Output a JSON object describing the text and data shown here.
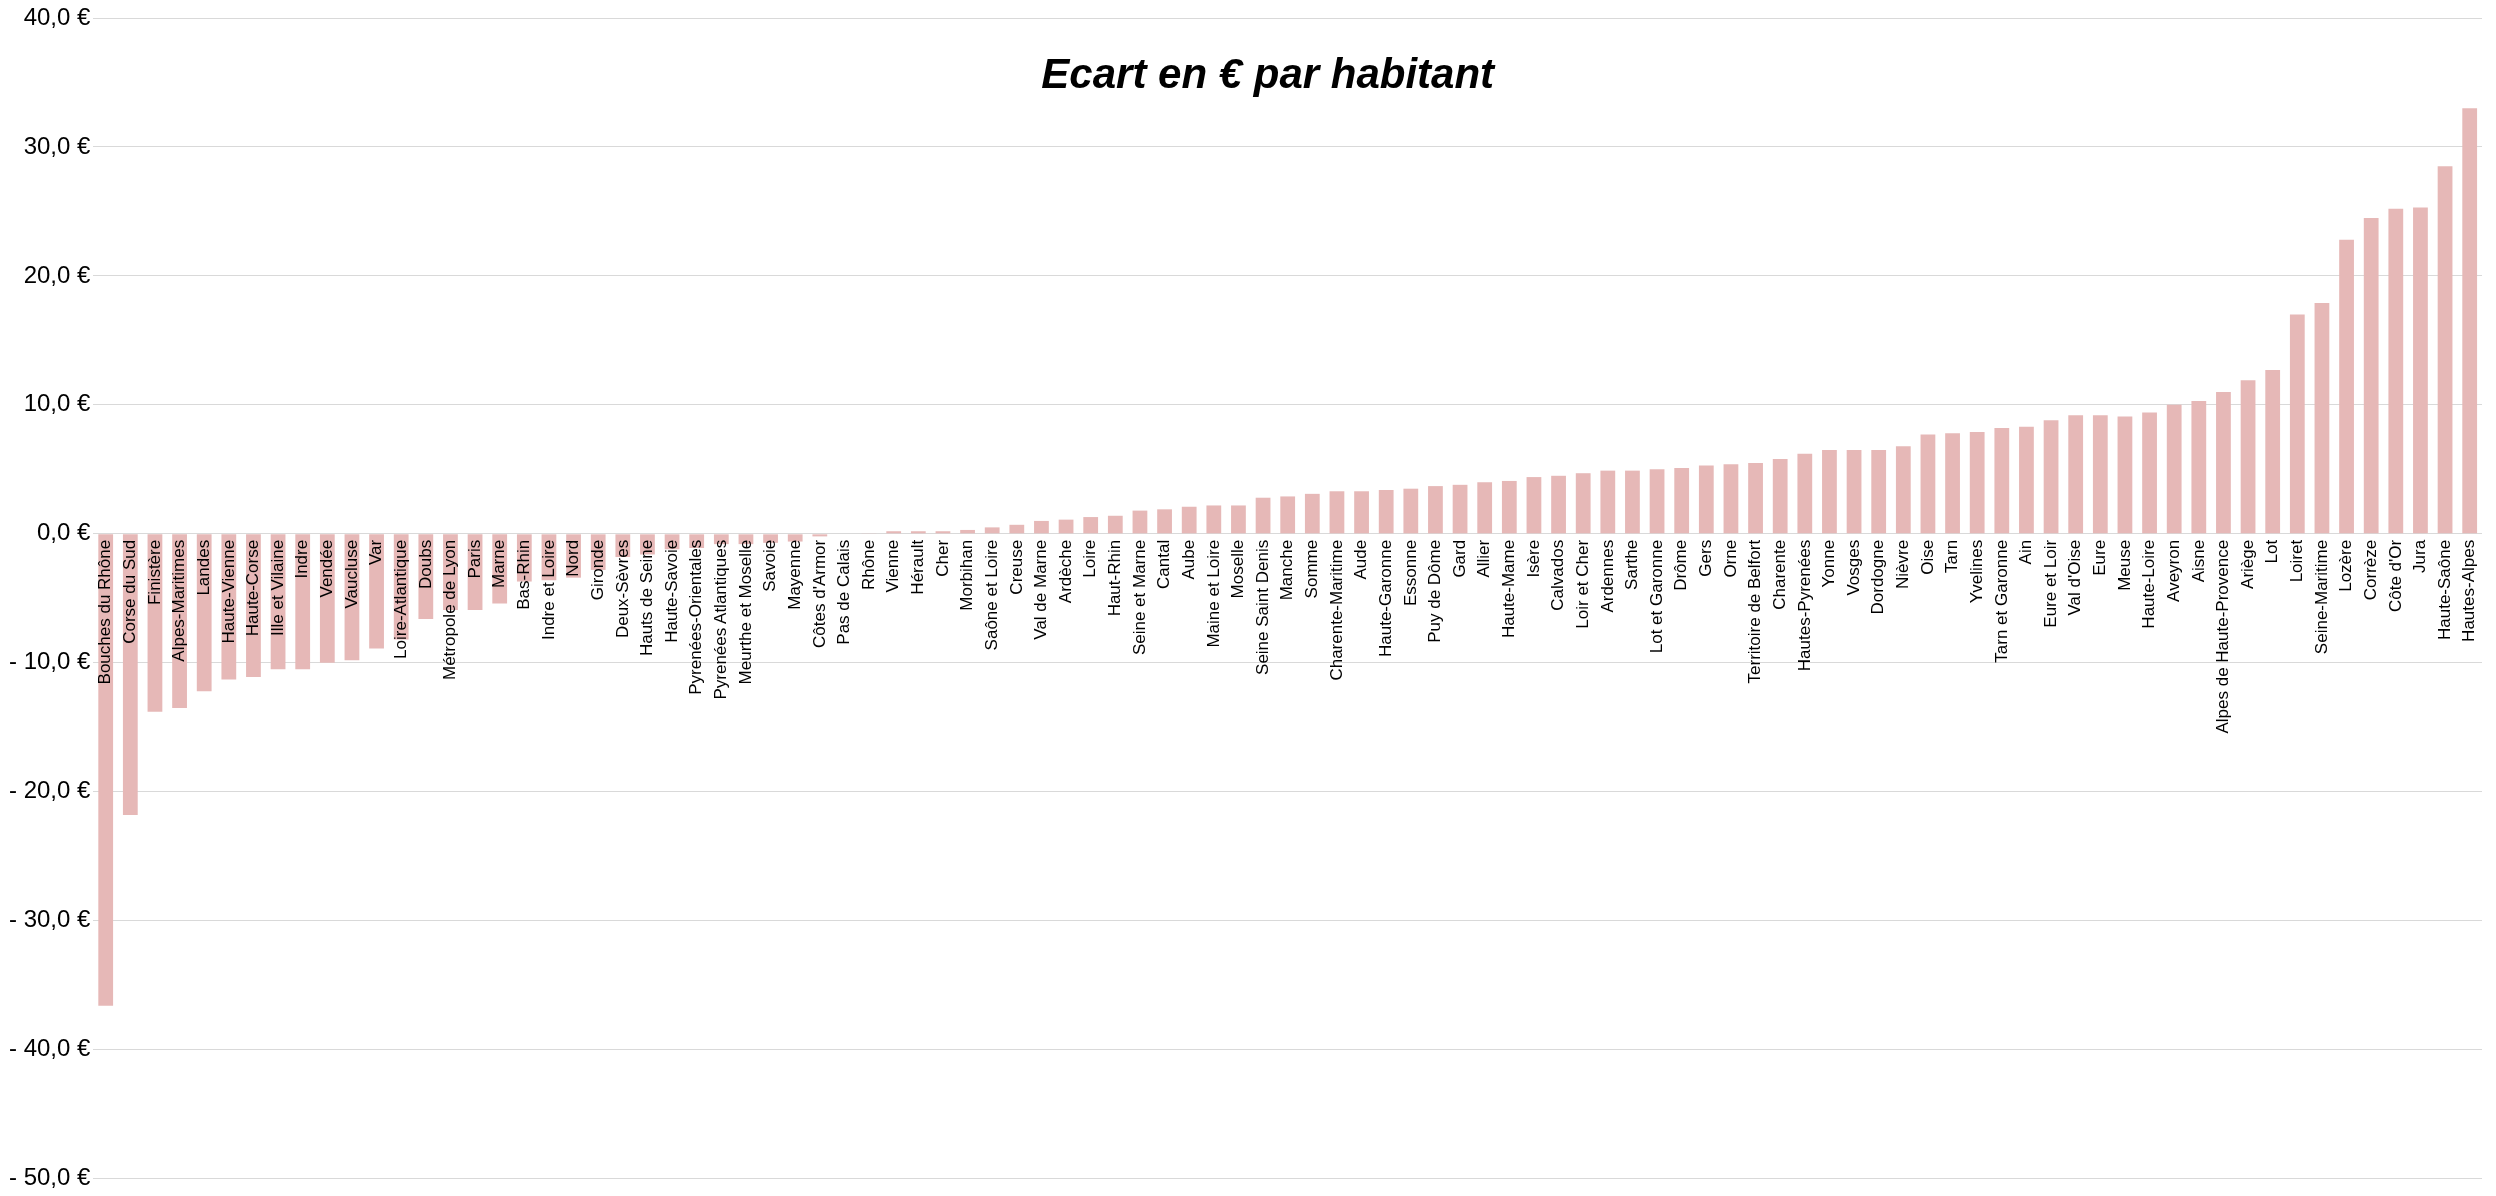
{
  "chart_data": {
    "type": "bar",
    "title": "Ecart en € par habitant",
    "categories": [
      "Bouches du Rhône",
      "Corse du Sud",
      "Finistère",
      "Alpes-Maritimes",
      "Landes",
      "Haute-Vienne",
      "Haute-Corse",
      "Ille et Vilaine",
      "Indre",
      "Vendée",
      "Vaucluse",
      "Var",
      "Loire-Atlantique",
      "Doubs",
      "Métropole de Lyon",
      "Paris",
      "Marne",
      "Bas-Rhin",
      "Indre et Loire",
      "Nord",
      "Gironde",
      "Deux-Sèvres",
      "Hauts de Seine",
      "Haute-Savoie",
      "Pyrenées-Orientales",
      "Pyrenées Atlantiques",
      "Meurthe et Moselle",
      "Savoie",
      "Mayenne",
      "Côtes d'Armor",
      "Pas de Calais",
      "Rhône",
      "Vienne",
      "Hérault",
      "Cher",
      "Morbihan",
      "Saône et Loire",
      "Creuse",
      "Val de Marne",
      "Ardèche",
      "Loire",
      "Haut-Rhin",
      "Seine et Marne",
      "Cantal",
      "Aube",
      "Maine et Loire",
      "Moselle",
      "Seine Saint Denis",
      "Manche",
      "Somme",
      "Charente-Maritime",
      "Aude",
      "Haute-Garonne",
      "Essonne",
      "Puy de Dôme",
      "Gard",
      "Allier",
      "Haute-Mame",
      "Isère",
      "Calvados",
      "Loir et Cher",
      "Ardennes",
      "Sarthe",
      "Lot et Garonne",
      "Drôme",
      "Gers",
      "Orne",
      "Territoire de Belfort",
      "Charente",
      "Hautes-Pyrenées",
      "Yonne",
      "Vosges",
      "Dordogne",
      "Nièvre",
      "Oise",
      "Tarn",
      "Yvelines",
      "Tarn et Garonne",
      "Ain",
      "Eure et Loir",
      "Val d'Oise",
      "Eure",
      "Meuse",
      "Haute-Loire",
      "Aveyron",
      "Aisne",
      "Alpes de Haute-Provence",
      "Ariège",
      "Lot",
      "Loiret",
      "Seine-Maritime",
      "Lozère",
      "Corrèze",
      "Côte d'Or",
      "Jura",
      "Haute-Saône",
      "Hautes-Alpes"
    ],
    "values": [
      -36.6,
      -21.8,
      -13.8,
      -13.5,
      -12.2,
      -11.3,
      -11.1,
      -10.5,
      -10.5,
      -10.0,
      -9.8,
      -8.9,
      -8.2,
      -6.6,
      -5.9,
      -5.9,
      -5.4,
      -3.7,
      -3.6,
      -3.4,
      -2.8,
      -1.8,
      -1.6,
      -1.2,
      -1.1,
      -0.8,
      -0.8,
      -0.7,
      -0.6,
      -0.2,
      0.0,
      0.05,
      0.2,
      0.2,
      0.2,
      0.3,
      0.5,
      0.7,
      1.0,
      1.1,
      1.3,
      1.4,
      1.8,
      1.9,
      2.1,
      2.2,
      2.2,
      2.8,
      2.9,
      3.1,
      3.3,
      3.3,
      3.4,
      3.5,
      3.7,
      3.8,
      4.0,
      4.1,
      4.4,
      4.5,
      4.7,
      4.9,
      4.9,
      5.0,
      5.1,
      5.3,
      5.4,
      5.5,
      5.8,
      6.2,
      6.5,
      6.5,
      6.5,
      6.8,
      7.7,
      7.8,
      7.9,
      8.2,
      8.3,
      8.8,
      9.2,
      9.2,
      9.1,
      9.4,
      10.0,
      10.3,
      11.0,
      11.9,
      12.7,
      17.0,
      17.9,
      22.8,
      24.5,
      25.2,
      25.3,
      28.5,
      33.0
    ],
    "color": "#e6b8b7",
    "ylim": [
      -50,
      40
    ],
    "yticks": [
      {
        "value": -50,
        "label": "- 50,0 €"
      },
      {
        "value": -40,
        "label": "- 40,0 €"
      },
      {
        "value": -30,
        "label": "- 30,0 €"
      },
      {
        "value": -20,
        "label": "- 20,0 €"
      },
      {
        "value": -10,
        "label": "- 10,0 €"
      },
      {
        "value": 0,
        "label": "0,0 €"
      },
      {
        "value": 10,
        "label": "10,0 €"
      },
      {
        "value": 20,
        "label": "20,0 €"
      },
      {
        "value": 30,
        "label": "30,0 €"
      },
      {
        "value": 40,
        "label": "40,0 €"
      }
    ],
    "grid": "y"
  }
}
